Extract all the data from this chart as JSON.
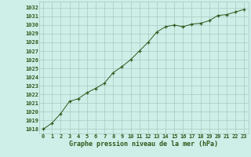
{
  "x": [
    0,
    1,
    2,
    3,
    4,
    5,
    6,
    7,
    8,
    9,
    10,
    11,
    12,
    13,
    14,
    15,
    16,
    17,
    18,
    19,
    20,
    21,
    22,
    23
  ],
  "y": [
    1018.0,
    1018.7,
    1019.8,
    1021.2,
    1021.5,
    1022.2,
    1022.7,
    1023.3,
    1024.5,
    1025.2,
    1026.0,
    1027.0,
    1028.0,
    1029.2,
    1029.8,
    1030.0,
    1029.8,
    1030.1,
    1030.2,
    1030.5,
    1031.1,
    1031.2,
    1031.5,
    1031.8
  ],
  "line_color": "#2d5a1b",
  "marker": "+",
  "bg_color": "#ceeee8",
  "grid_color": "#a8c8c0",
  "ylabel_values": [
    1018,
    1019,
    1020,
    1021,
    1022,
    1023,
    1024,
    1025,
    1026,
    1027,
    1028,
    1029,
    1030,
    1031,
    1032
  ],
  "xlabel": "Graphe pression niveau de la mer (hPa)",
  "ylim_min": 1017.5,
  "ylim_max": 1032.7,
  "xlim_min": -0.5,
  "xlim_max": 23.5,
  "tick_fontsize": 5.0,
  "label_fontsize": 6.0
}
